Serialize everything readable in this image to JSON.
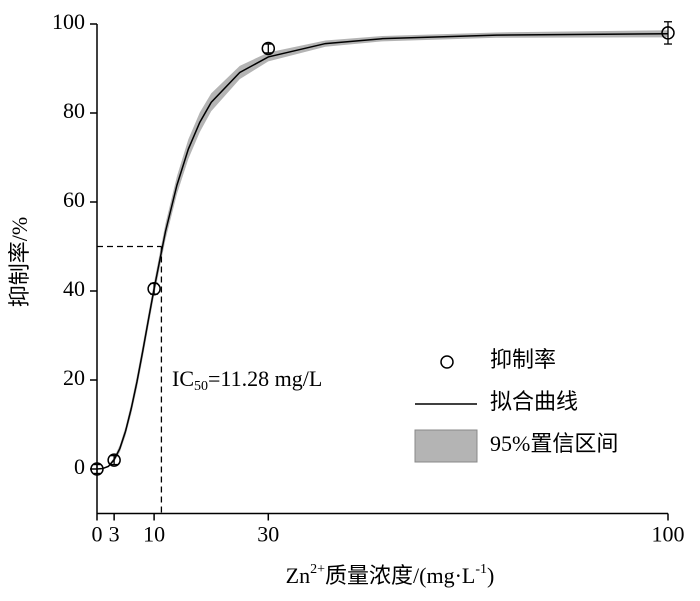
{
  "chart_data": {
    "type": "scatter",
    "xlim": [
      0,
      100
    ],
    "xticks": [
      0,
      3,
      10,
      30,
      100
    ],
    "ylim": [
      -10,
      100
    ],
    "yticks": [
      0,
      20,
      40,
      60,
      80,
      100
    ],
    "xlabel": {
      "base": "Zn",
      "sup": "2+",
      "text": "质量浓度/(mg·L",
      "sup2": "-1",
      "end": ")"
    },
    "ylabel": "抑制率/%",
    "annotation": {
      "prefix": "IC",
      "sub": "50",
      "text": "=11.28 mg/L"
    },
    "reference": {
      "x": 11.28,
      "y": 50
    },
    "series": [
      {
        "name": "抑制率",
        "color": "#000000",
        "x": [
          0,
          3,
          10,
          30,
          100
        ],
        "values": [
          0,
          2,
          40.5,
          94.5,
          98
        ],
        "errors": [
          1,
          1,
          1.2,
          1,
          2.5
        ]
      },
      {
        "name": "拟合曲线",
        "color": "#000000",
        "x": [
          0,
          1,
          2,
          3,
          4,
          5,
          6,
          7,
          8,
          9,
          10,
          12,
          14,
          16,
          18,
          20,
          25,
          30,
          40,
          50,
          70,
          100
        ],
        "values": [
          0,
          0.1,
          0.6,
          2.1,
          4.6,
          8.5,
          13.6,
          19.6,
          26.4,
          33.5,
          40.5,
          53.4,
          63.8,
          71.9,
          77.9,
          82.4,
          89.1,
          92.6,
          95.6,
          96.7,
          97.5,
          97.8
        ]
      },
      {
        "name": "95%置信区间",
        "color": "#b4b4b4",
        "x": [
          0,
          1,
          2,
          3,
          4,
          5,
          6,
          7,
          8,
          9,
          10,
          12,
          14,
          16,
          18,
          20,
          25,
          30,
          40,
          50,
          70,
          100
        ],
        "upper": [
          0,
          0.1,
          0.8,
          2.6,
          5.4,
          9.5,
          14.8,
          21.0,
          27.9,
          35.0,
          42.0,
          55.2,
          65.8,
          74.1,
          80.1,
          84.4,
          90.6,
          93.6,
          96.3,
          97.3,
          98.1,
          98.6
        ],
        "lower": [
          0,
          0.1,
          0.4,
          1.6,
          3.8,
          7.5,
          12.4,
          18.2,
          24.9,
          32.0,
          39.0,
          51.6,
          61.8,
          69.7,
          75.7,
          80.4,
          87.6,
          91.6,
          94.9,
          96.1,
          96.9,
          97.0
        ]
      }
    ]
  }
}
